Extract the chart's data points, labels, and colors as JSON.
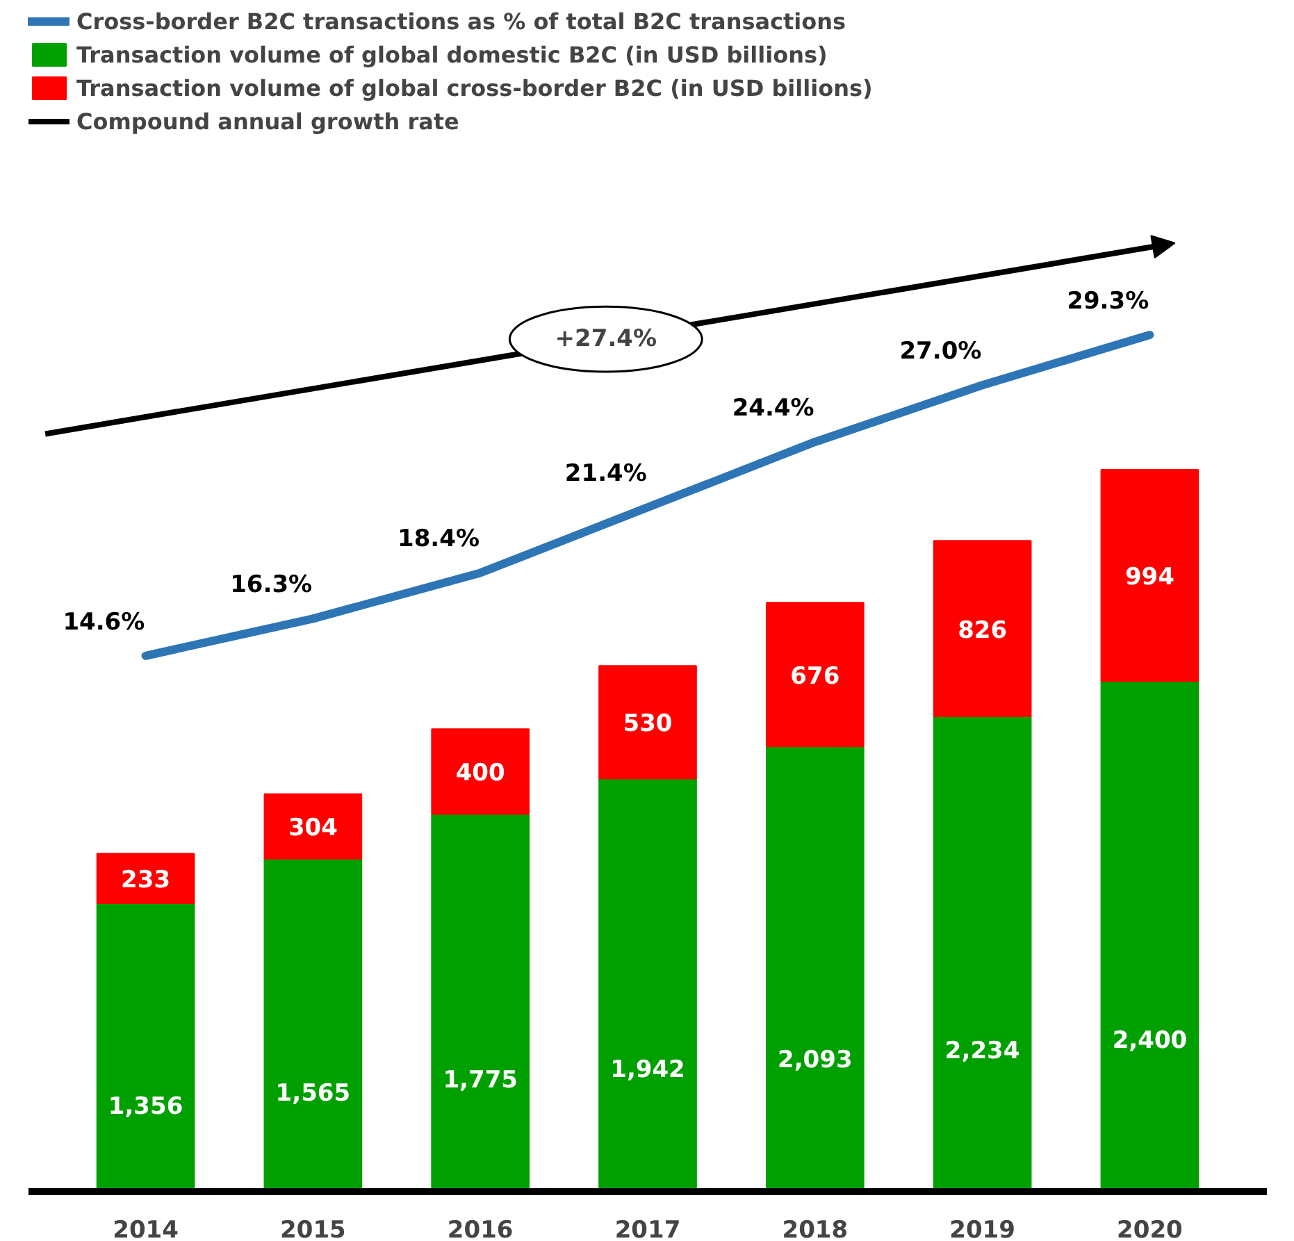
{
  "chart_data": {
    "type": "bar",
    "stacked": true,
    "legend": "top left",
    "grid": false,
    "tick_labels": "x",
    "categories": [
      "2014",
      "2015",
      "2016",
      "2017",
      "2018",
      "2019",
      "2020"
    ],
    "series": [
      {
        "name": "Transaction volume of global domestic B2C (in USD billions)",
        "color": "#00a000",
        "values": [
          1356,
          1565,
          1775,
          1942,
          2093,
          2234,
          2400
        ],
        "value_labels": [
          "1,356",
          "1,565",
          "1,775",
          "1,942",
          "2,093",
          "2,234",
          "2,400"
        ]
      },
      {
        "name": "Transaction volume of global cross-border B2C (in USD billions)",
        "color": "#ff0000",
        "values": [
          233,
          304,
          400,
          530,
          676,
          826,
          994
        ],
        "value_labels": [
          "233",
          "304",
          "400",
          "530",
          "676",
          "826",
          "994"
        ]
      },
      {
        "name": "Cross-border B2C transactions as % of total B2C transactions",
        "type": "line",
        "axis": "y2",
        "color": "#2e75b6",
        "values": [
          14.6,
          16.3,
          18.4,
          21.4,
          24.4,
          27.0,
          29.3
        ],
        "value_labels": [
          "14.6%",
          "16.3%",
          "18.4%",
          "21.4%",
          "24.4%",
          "27.0%",
          "29.3%"
        ]
      }
    ],
    "annotations": [
      "Compound annual growth rate",
      "+27.4%"
    ]
  }
}
